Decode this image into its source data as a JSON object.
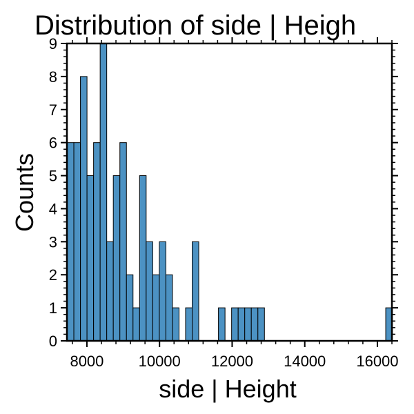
{
  "chart_data": {
    "type": "bar",
    "title": "Distribution of side | Heigh",
    "xlabel": "side | Height",
    "ylabel": "Counts",
    "xlim": [
      7450,
      16400
    ],
    "ylim": [
      0,
      9
    ],
    "x_ticks": [
      8000,
      10000,
      12000,
      14000,
      16000
    ],
    "y_ticks": [
      0,
      1,
      2,
      3,
      4,
      5,
      6,
      7,
      8,
      9
    ],
    "bin_width": 181,
    "bins": [
      {
        "x0": 7460,
        "count": 6
      },
      {
        "x0": 7641,
        "count": 6
      },
      {
        "x0": 7822,
        "count": 8
      },
      {
        "x0": 8003,
        "count": 5
      },
      {
        "x0": 8184,
        "count": 6
      },
      {
        "x0": 8365,
        "count": 9
      },
      {
        "x0": 8546,
        "count": 3
      },
      {
        "x0": 8727,
        "count": 5
      },
      {
        "x0": 8908,
        "count": 6
      },
      {
        "x0": 9089,
        "count": 2
      },
      {
        "x0": 9270,
        "count": 1
      },
      {
        "x0": 9451,
        "count": 5
      },
      {
        "x0": 9632,
        "count": 3
      },
      {
        "x0": 9813,
        "count": 2
      },
      {
        "x0": 9994,
        "count": 3
      },
      {
        "x0": 10175,
        "count": 2
      },
      {
        "x0": 10356,
        "count": 1
      },
      {
        "x0": 10537,
        "count": 0
      },
      {
        "x0": 10718,
        "count": 1
      },
      {
        "x0": 10899,
        "count": 3
      },
      {
        "x0": 11080,
        "count": 0
      },
      {
        "x0": 11261,
        "count": 0
      },
      {
        "x0": 11442,
        "count": 0
      },
      {
        "x0": 11623,
        "count": 1
      },
      {
        "x0": 11804,
        "count": 0
      },
      {
        "x0": 11985,
        "count": 1
      },
      {
        "x0": 12166,
        "count": 1
      },
      {
        "x0": 12347,
        "count": 1
      },
      {
        "x0": 12528,
        "count": 1
      },
      {
        "x0": 12709,
        "count": 1
      },
      {
        "x0": 16230,
        "count": 1
      }
    ],
    "grid": false,
    "bar_color": "#4c92c3",
    "edge_color": "#000000"
  }
}
